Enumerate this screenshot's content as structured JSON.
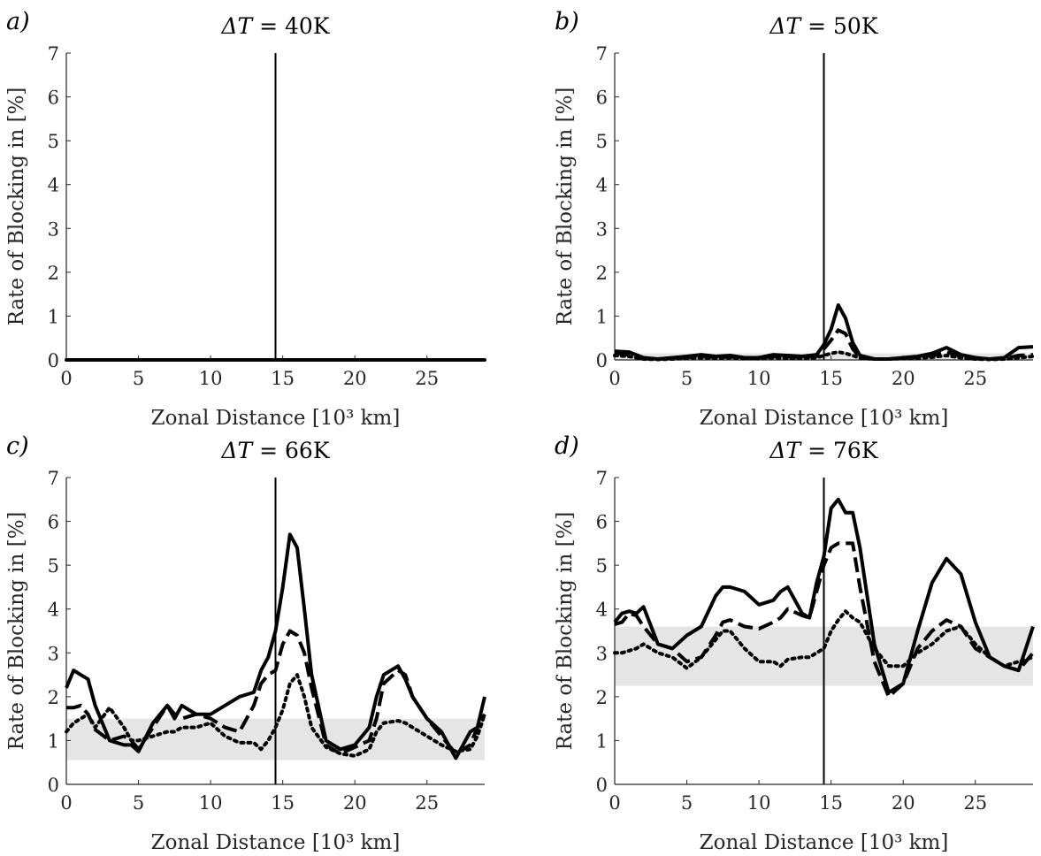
{
  "figure": {
    "ylabel": "Rate of Blocking in [%]"
  },
  "chart_data": [
    {
      "type": "line",
      "panel_label": "a)",
      "title_prefix": "ΔT",
      "title_value": "40K",
      "xlabel": "Zonal Distance [10³ km]",
      "xlim": [
        0,
        29
      ],
      "ylim": [
        0,
        7
      ],
      "xticks": [
        "0",
        "5",
        "10",
        "15",
        "20",
        "25"
      ],
      "yticks": [
        "0",
        "1",
        "2",
        "3",
        "4",
        "5",
        "6",
        "7"
      ],
      "vline_x": 14.5,
      "band": [
        0,
        0
      ],
      "x": [
        0,
        29
      ],
      "series": [
        {
          "name": "solid",
          "style": "solid",
          "values": [
            0,
            0
          ]
        },
        {
          "name": "dashed",
          "style": "dashed",
          "values": [
            0,
            0
          ]
        },
        {
          "name": "dotted",
          "style": "dotted",
          "values": [
            0,
            0
          ]
        }
      ]
    },
    {
      "type": "line",
      "panel_label": "b)",
      "title_prefix": "ΔT",
      "title_value": "50K",
      "xlabel": "Zonal Distance [10³ km]",
      "xlim": [
        0,
        29
      ],
      "ylim": [
        0,
        7
      ],
      "xticks": [
        "0",
        "5",
        "10",
        "15",
        "20",
        "25"
      ],
      "yticks": [
        "0",
        "1",
        "2",
        "3",
        "4",
        "5",
        "6",
        "7"
      ],
      "vline_x": 14.5,
      "band": [
        0,
        0.15
      ],
      "x": [
        0,
        1,
        2,
        3,
        4,
        5,
        6,
        7,
        8,
        9,
        10,
        11,
        12,
        13,
        14,
        14.5,
        15,
        15.5,
        16,
        16.5,
        17,
        18,
        19,
        20,
        21,
        22,
        23,
        24,
        25,
        26,
        27,
        28,
        29
      ],
      "series": [
        {
          "name": "solid",
          "style": "solid",
          "values": [
            0.2,
            0.18,
            0.05,
            0.02,
            0.05,
            0.08,
            0.12,
            0.08,
            0.1,
            0.05,
            0.05,
            0.12,
            0.1,
            0.08,
            0.12,
            0.35,
            0.7,
            1.25,
            0.95,
            0.4,
            0.1,
            0.02,
            0.02,
            0.05,
            0.08,
            0.15,
            0.28,
            0.12,
            0.05,
            0.02,
            0.05,
            0.28,
            0.3
          ]
        },
        {
          "name": "dashed",
          "style": "dashed",
          "values": [
            0.15,
            0.12,
            0.03,
            0.02,
            0.04,
            0.06,
            0.08,
            0.06,
            0.07,
            0.04,
            0.04,
            0.08,
            0.07,
            0.06,
            0.08,
            0.25,
            0.45,
            0.68,
            0.6,
            0.25,
            0.06,
            0.02,
            0.02,
            0.04,
            0.06,
            0.1,
            0.18,
            0.08,
            0.03,
            0.02,
            0.03,
            0.1,
            0.12
          ]
        },
        {
          "name": "dotted",
          "style": "dotted",
          "values": [
            0.1,
            0.08,
            0.02,
            0.01,
            0.02,
            0.04,
            0.05,
            0.04,
            0.05,
            0.03,
            0.03,
            0.05,
            0.04,
            0.04,
            0.05,
            0.1,
            0.15,
            0.18,
            0.15,
            0.1,
            0.04,
            0.02,
            0.02,
            0.03,
            0.04,
            0.06,
            0.1,
            0.05,
            0.02,
            0.01,
            0.02,
            0.05,
            0.08
          ]
        }
      ]
    },
    {
      "type": "line",
      "panel_label": "c)",
      "title_prefix": "ΔT",
      "title_value": "66K",
      "xlabel": "Zonal Distance [10³ km]",
      "xlim": [
        0,
        29
      ],
      "ylim": [
        0,
        7
      ],
      "xticks": [
        "0",
        "5",
        "10",
        "15",
        "20",
        "25"
      ],
      "yticks": [
        "0",
        "1",
        "2",
        "3",
        "4",
        "5",
        "6",
        "7"
      ],
      "vline_x": 14.5,
      "band": [
        0.55,
        1.5
      ],
      "x": [
        0,
        0.5,
        1,
        1.5,
        2,
        3,
        4,
        4.5,
        5,
        6,
        7,
        7.5,
        8,
        9,
        10,
        11,
        12,
        13,
        13.5,
        14,
        14.5,
        15,
        15.5,
        16,
        16.5,
        17,
        18,
        19,
        20,
        21,
        21.5,
        22,
        23,
        23.5,
        24,
        25,
        26,
        27,
        28,
        28.5,
        29
      ],
      "series": [
        {
          "name": "solid",
          "style": "solid",
          "values": [
            2.2,
            2.6,
            2.5,
            2.4,
            1.8,
            1.0,
            0.9,
            0.9,
            0.75,
            1.4,
            1.8,
            1.5,
            1.8,
            1.6,
            1.6,
            1.8,
            2.0,
            2.1,
            2.6,
            2.9,
            3.5,
            4.5,
            5.7,
            5.4,
            4.0,
            2.5,
            1.0,
            0.8,
            0.9,
            1.3,
            2.0,
            2.5,
            2.7,
            2.4,
            2.0,
            1.5,
            1.2,
            0.6,
            1.2,
            1.3,
            2.0
          ]
        },
        {
          "name": "dashed",
          "style": "dashed",
          "values": [
            1.75,
            1.75,
            1.8,
            1.6,
            1.25,
            1.0,
            1.1,
            1.0,
            0.8,
            1.3,
            1.8,
            1.6,
            1.5,
            1.6,
            1.5,
            1.3,
            1.2,
            1.8,
            2.3,
            2.5,
            2.6,
            3.2,
            3.5,
            3.4,
            3.0,
            2.2,
            0.9,
            0.7,
            0.85,
            1.0,
            1.5,
            2.3,
            2.6,
            2.5,
            2.0,
            1.5,
            1.1,
            0.7,
            0.9,
            1.3,
            1.6
          ]
        },
        {
          "name": "dotted",
          "style": "dotted",
          "values": [
            1.2,
            1.4,
            1.5,
            1.6,
            1.3,
            1.75,
            1.3,
            1.0,
            1.0,
            1.1,
            1.2,
            1.2,
            1.3,
            1.3,
            1.4,
            1.1,
            0.95,
            0.95,
            0.8,
            1.0,
            1.3,
            1.7,
            2.3,
            2.5,
            2.0,
            1.3,
            0.85,
            0.7,
            0.65,
            0.8,
            1.2,
            1.4,
            1.45,
            1.4,
            1.3,
            1.1,
            0.9,
            0.75,
            0.8,
            1.1,
            1.6
          ]
        }
      ]
    },
    {
      "type": "line",
      "panel_label": "d)",
      "title_prefix": "ΔT",
      "title_value": "76K",
      "xlabel": "Zonal Distance [10³ km]",
      "xlim": [
        0,
        29
      ],
      "ylim": [
        0,
        7
      ],
      "xticks": [
        "0",
        "5",
        "10",
        "15",
        "20",
        "25"
      ],
      "yticks": [
        "0",
        "1",
        "2",
        "3",
        "4",
        "5",
        "6",
        "7"
      ],
      "vline_x": 14.5,
      "band": [
        2.25,
        3.6
      ],
      "x": [
        0,
        0.5,
        1,
        1.5,
        2,
        3,
        4,
        5,
        6,
        7,
        7.5,
        8,
        9,
        10,
        11,
        11.5,
        12,
        13,
        13.5,
        14,
        14.5,
        15,
        15.5,
        16,
        16.5,
        17,
        18,
        19,
        20,
        21,
        22,
        23,
        24,
        25,
        26,
        27,
        28,
        29
      ],
      "series": [
        {
          "name": "solid",
          "style": "solid",
          "values": [
            3.7,
            3.9,
            3.95,
            3.9,
            4.05,
            3.2,
            3.1,
            3.4,
            3.6,
            4.3,
            4.5,
            4.5,
            4.4,
            4.1,
            4.2,
            4.4,
            4.5,
            3.9,
            3.8,
            4.6,
            5.2,
            6.3,
            6.5,
            6.2,
            6.2,
            5.4,
            3.2,
            2.1,
            2.3,
            3.5,
            4.6,
            5.15,
            4.8,
            3.7,
            2.9,
            2.7,
            2.6,
            3.6
          ]
        },
        {
          "name": "dashed",
          "style": "dashed",
          "values": [
            3.65,
            3.7,
            3.9,
            3.85,
            3.6,
            3.2,
            3.1,
            2.8,
            2.9,
            3.4,
            3.7,
            3.75,
            3.6,
            3.55,
            3.7,
            3.8,
            4.0,
            3.85,
            3.8,
            4.4,
            5.0,
            5.4,
            5.5,
            5.5,
            5.5,
            4.5,
            2.8,
            2.0,
            2.3,
            3.1,
            3.5,
            3.75,
            3.6,
            3.1,
            2.9,
            2.7,
            2.6,
            3.0
          ]
        },
        {
          "name": "dotted",
          "style": "dotted",
          "values": [
            3.0,
            3.0,
            3.05,
            3.1,
            3.2,
            3.0,
            2.9,
            2.65,
            2.9,
            3.3,
            3.5,
            3.5,
            3.1,
            2.8,
            2.8,
            2.7,
            2.85,
            2.9,
            2.9,
            3.0,
            3.1,
            3.5,
            3.75,
            3.95,
            3.8,
            3.7,
            3.1,
            2.7,
            2.7,
            3.0,
            3.2,
            3.5,
            3.6,
            3.2,
            2.9,
            2.7,
            2.8,
            2.9
          ]
        }
      ]
    }
  ]
}
